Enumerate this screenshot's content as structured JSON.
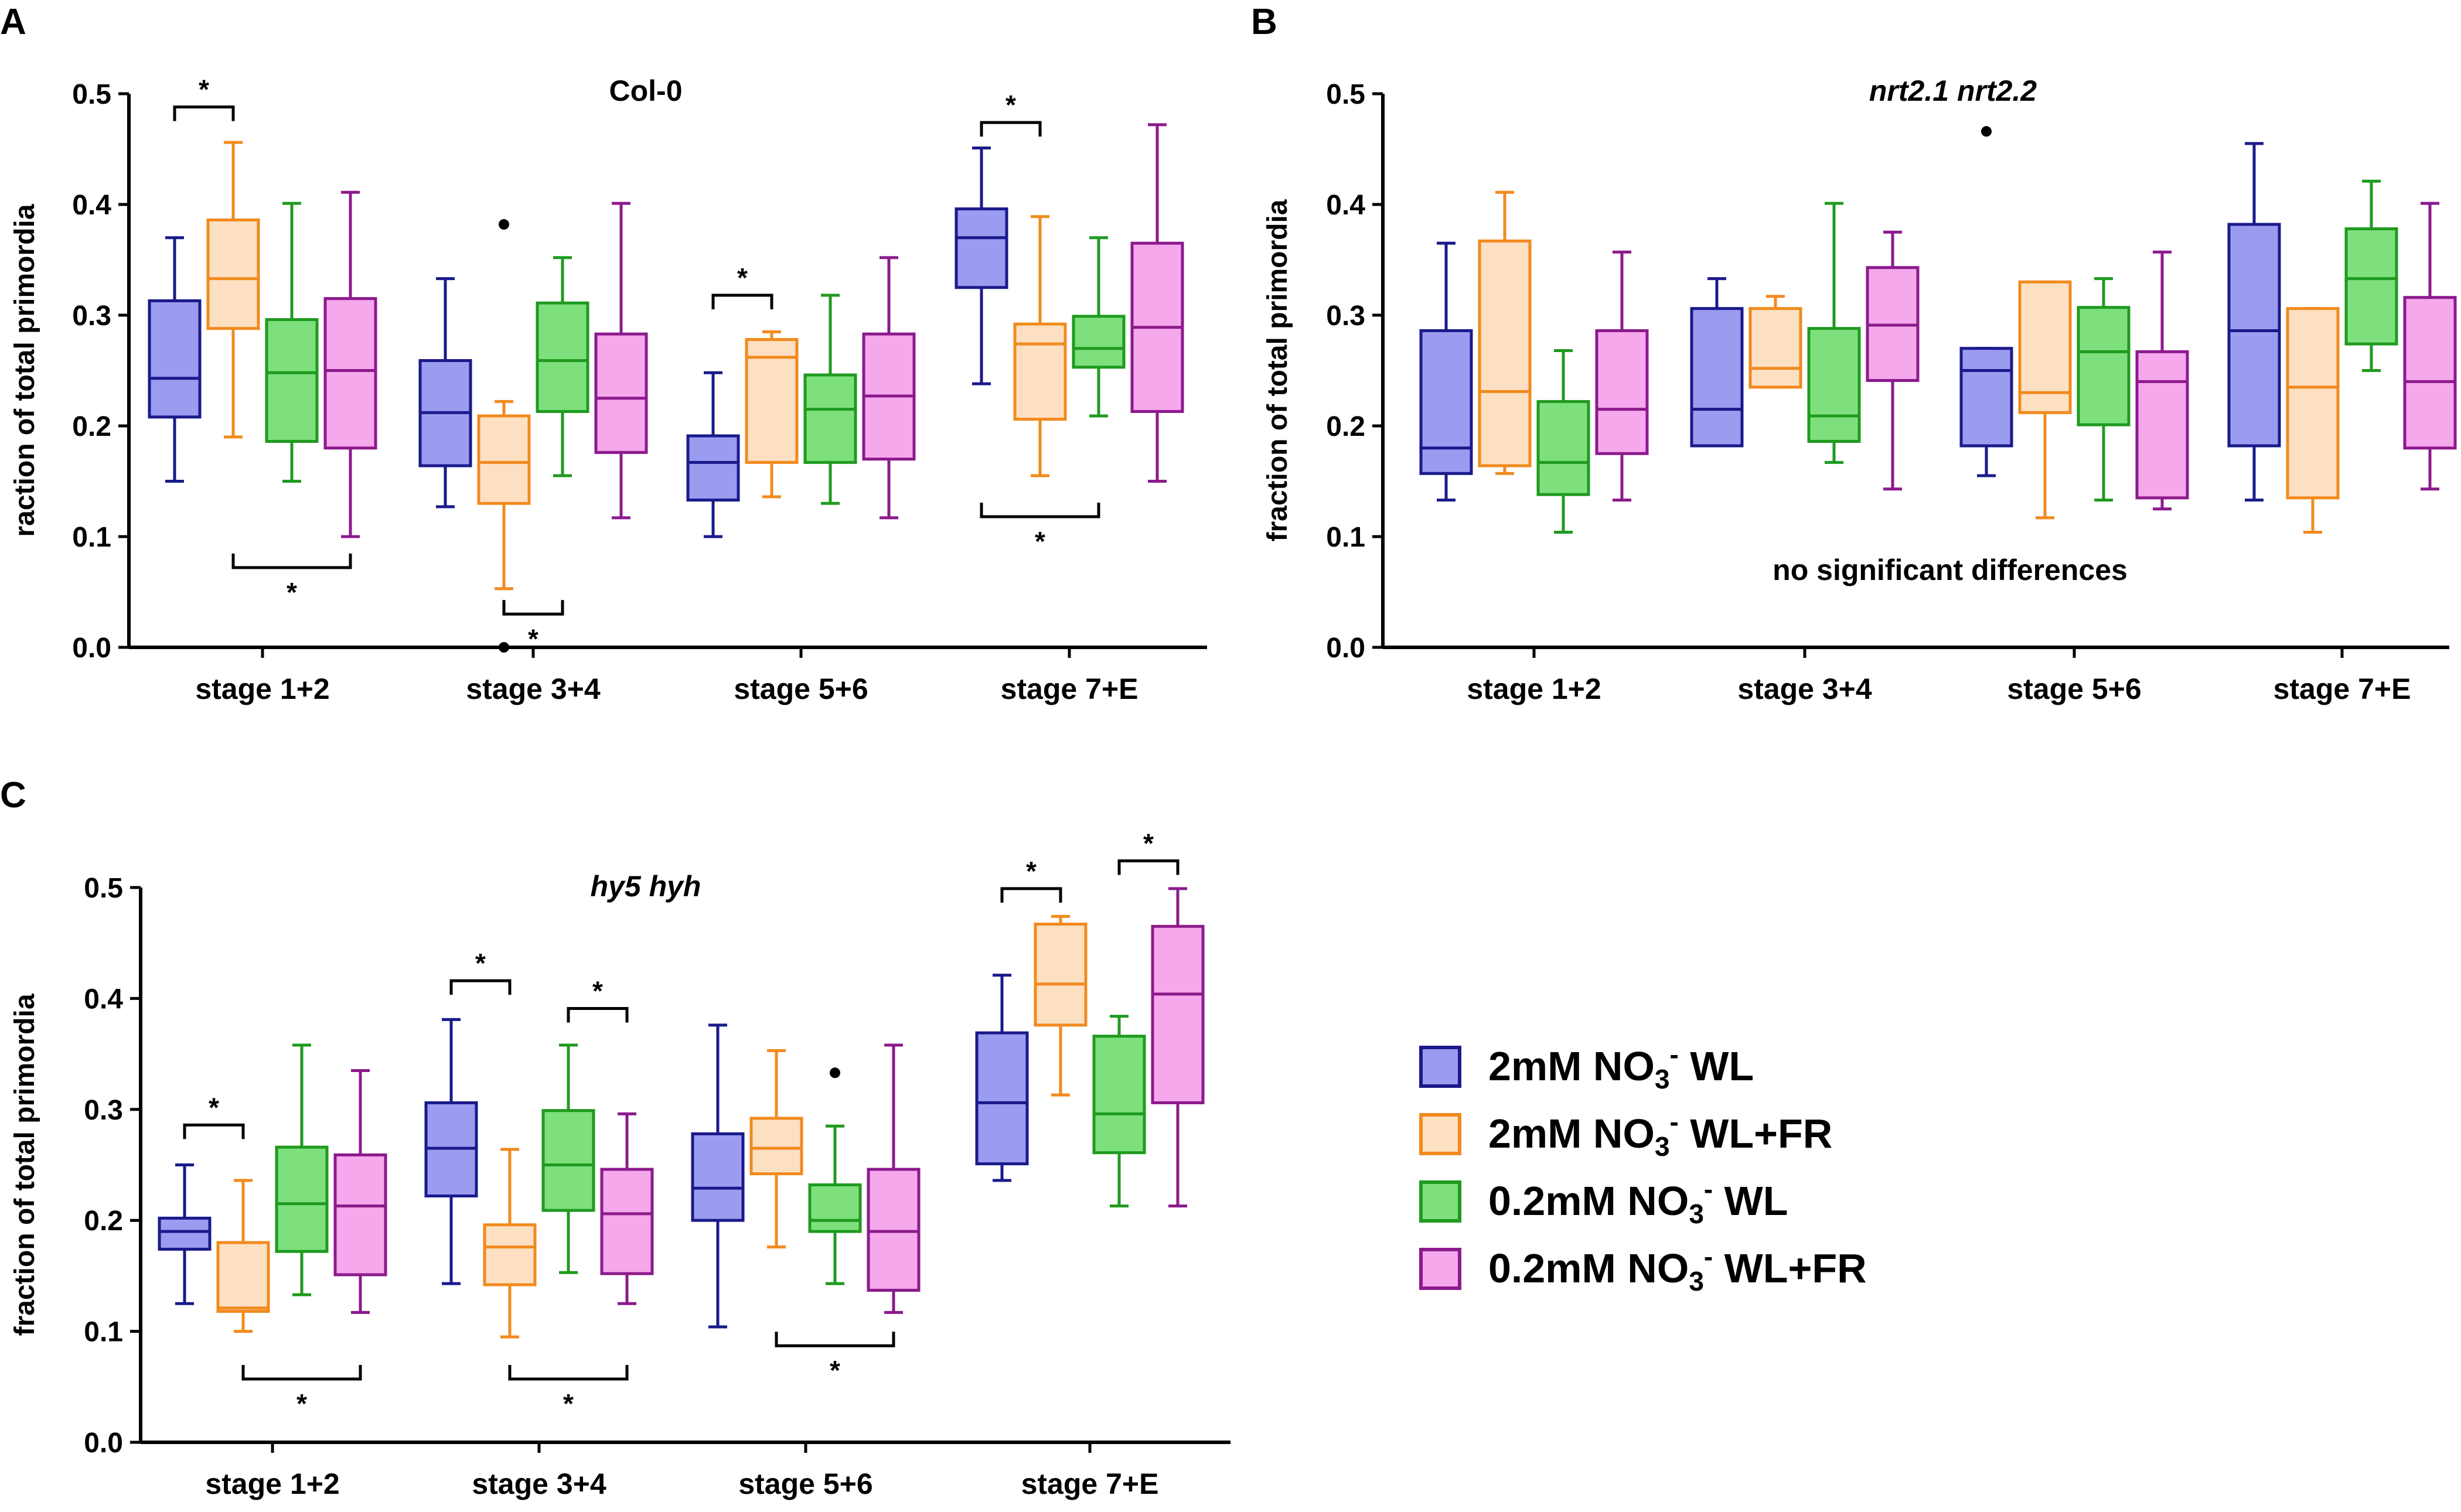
{
  "colors": {
    "2mM NO3 WL": {
      "stroke": "#1a1a8c",
      "fill": "#9b9bf0"
    },
    "2mM NO3 WL+FR": {
      "stroke": "#f28a1e",
      "fill": "#fde0c2"
    },
    "0.2mM NO3 WL": {
      "stroke": "#1f9a1f",
      "fill": "#7de07d"
    },
    "0.2mM NO3 WL+FR": {
      "stroke": "#8c1a8c",
      "fill": "#f5a8ec"
    }
  },
  "legend": {
    "items": [
      {
        "series": "2mM NO3 WL",
        "pre": "2mM NO",
        "sub": "3",
        "sup": "-",
        "post": " WL"
      },
      {
        "series": "2mM NO3 WL+FR",
        "pre": "2mM NO",
        "sub": "3",
        "sup": "-",
        "post": " WL+FR"
      },
      {
        "series": "0.2mM NO3 WL",
        "pre": "0.2mM NO",
        "sub": "3",
        "sup": "-",
        "post": " WL"
      },
      {
        "series": "0.2mM NO3 WL+FR",
        "pre": "0.2mM NO",
        "sub": "3",
        "sup": "-",
        "post": " WL+FR"
      }
    ]
  },
  "chart_data": [
    {
      "panel": "A",
      "type": "boxplot",
      "title": "Col-0",
      "title_italic": false,
      "ylabel": "raction of total primordia",
      "ylim": [
        0,
        0.5
      ],
      "yticks": [
        "0.0",
        "0.1",
        "0.2",
        "0.3",
        "0.4",
        "0.5"
      ],
      "categories": [
        "stage 1+2",
        "stage 3+4",
        "stage 5+6",
        "stage 7+E"
      ],
      "series_order": [
        "2mM NO3 WL",
        "2mM NO3 WL+FR",
        "0.2mM NO3 WL",
        "0.2mM NO3 WL+FR"
      ],
      "boxes": [
        [
          [
            0.15,
            0.208,
            0.243,
            0.313,
            0.37
          ],
          [
            0.19,
            0.288,
            0.333,
            0.386,
            0.456
          ],
          [
            0.15,
            0.186,
            0.248,
            0.296,
            0.401
          ],
          [
            0.1,
            0.18,
            0.25,
            0.315,
            0.411
          ]
        ],
        [
          [
            0.127,
            0.164,
            0.212,
            0.259,
            0.333
          ],
          [
            0.053,
            0.13,
            0.167,
            0.209,
            0.222
          ],
          [
            0.155,
            0.213,
            0.259,
            0.311,
            0.352
          ],
          [
            0.117,
            0.176,
            0.225,
            0.283,
            0.401
          ]
        ],
        [
          [
            0.1,
            0.133,
            0.167,
            0.191,
            0.248
          ],
          [
            0.136,
            0.167,
            0.262,
            0.278,
            0.285
          ],
          [
            0.13,
            0.167,
            0.215,
            0.246,
            0.318
          ],
          [
            0.117,
            0.17,
            0.227,
            0.283,
            0.352
          ]
        ],
        [
          [
            0.238,
            0.325,
            0.37,
            0.396,
            0.451
          ],
          [
            0.155,
            0.206,
            0.274,
            0.292,
            0.389
          ],
          [
            0.209,
            0.253,
            0.27,
            0.299,
            0.37
          ],
          [
            0.15,
            0.213,
            0.289,
            0.365,
            0.472
          ]
        ]
      ],
      "outliers": [
        {
          "cat": 1,
          "series": 1,
          "value": 0.382
        },
        {
          "cat": 1,
          "series": 1,
          "value": 0.0
        }
      ],
      "significance": [
        {
          "cat": 0,
          "from": 0,
          "to": 1,
          "type": "top",
          "level": 0.488,
          "label": "*"
        },
        {
          "cat": 0,
          "from": 1,
          "to": 3,
          "type": "bottom",
          "level": 0.072,
          "label": "*"
        },
        {
          "cat": 1,
          "from": 1,
          "to": 2,
          "type": "bottom",
          "level": 0.03,
          "label": "*"
        },
        {
          "cat": 2,
          "from": 0,
          "to": 1,
          "type": "top",
          "level": 0.318,
          "label": "*"
        },
        {
          "cat": 3,
          "from": 0,
          "to": 1,
          "type": "top",
          "level": 0.474,
          "label": "*"
        },
        {
          "cat": 3,
          "from": 0,
          "to": 2,
          "type": "bottom",
          "level": 0.118,
          "label": "*"
        }
      ],
      "note": ""
    },
    {
      "panel": "B",
      "type": "boxplot",
      "title": "nrt2.1 nrt2.2",
      "title_italic": true,
      "ylabel": "fraction of total primordia",
      "ylim": [
        0,
        0.5
      ],
      "yticks": [
        "0.0",
        "0.1",
        "0.2",
        "0.3",
        "0.4",
        "0.5"
      ],
      "categories": [
        "stage 1+2",
        "stage 3+4",
        "stage 5+6",
        "stage 7+E"
      ],
      "series_order": [
        "2mM NO3 WL",
        "2mM NO3 WL+FR",
        "0.2mM NO3 WL",
        "0.2mM NO3 WL+FR"
      ],
      "boxes": [
        [
          [
            0.133,
            0.157,
            0.18,
            0.286,
            0.365
          ],
          [
            0.157,
            0.164,
            0.231,
            0.367,
            0.411
          ],
          [
            0.104,
            0.138,
            0.167,
            0.222,
            0.268
          ],
          [
            0.133,
            0.175,
            0.215,
            0.286,
            0.357
          ]
        ],
        [
          [
            0.182,
            0.182,
            0.215,
            0.306,
            0.333
          ],
          [
            0.235,
            0.235,
            0.252,
            0.306,
            0.317
          ],
          [
            0.167,
            0.186,
            0.209,
            0.288,
            0.401
          ],
          [
            0.143,
            0.241,
            0.291,
            0.343,
            0.375
          ]
        ],
        [
          [
            0.155,
            0.182,
            0.25,
            0.27,
            0.27
          ],
          [
            0.117,
            0.212,
            0.23,
            0.33,
            0.33
          ],
          [
            0.133,
            0.201,
            0.267,
            0.307,
            0.333
          ],
          [
            0.125,
            0.135,
            0.24,
            0.267,
            0.357
          ]
        ],
        [
          [
            0.133,
            0.182,
            0.286,
            0.382,
            0.455
          ],
          [
            0.104,
            0.135,
            0.235,
            0.306,
            0.306
          ],
          [
            0.25,
            0.274,
            0.333,
            0.378,
            0.421
          ],
          [
            0.143,
            0.18,
            0.24,
            0.316,
            0.401
          ]
        ]
      ],
      "outliers": [
        {
          "cat": 2,
          "series": 0,
          "value": 0.466
        }
      ],
      "significance": [],
      "note": "no significant differences"
    },
    {
      "panel": "C",
      "type": "boxplot",
      "title": "hy5 hyh",
      "title_italic": true,
      "ylabel": "fraction of total primordia",
      "ylim": [
        0,
        0.5
      ],
      "yticks": [
        "0.0",
        "0.1",
        "0.2",
        "0.3",
        "0.4",
        "0.5"
      ],
      "categories": [
        "stage 1+2",
        "stage 3+4",
        "stage 5+6",
        "stage 7+E"
      ],
      "series_order": [
        "2mM NO3 WL",
        "2mM NO3 WL+FR",
        "0.2mM NO3 WL",
        "0.2mM NO3 WL+FR"
      ],
      "boxes": [
        [
          [
            0.125,
            0.174,
            0.19,
            0.202,
            0.25
          ],
          [
            0.1,
            0.118,
            0.121,
            0.18,
            0.236
          ],
          [
            0.133,
            0.172,
            0.215,
            0.266,
            0.358
          ],
          [
            0.117,
            0.151,
            0.213,
            0.259,
            0.335
          ]
        ],
        [
          [
            0.143,
            0.222,
            0.265,
            0.306,
            0.381
          ],
          [
            0.095,
            0.142,
            0.176,
            0.196,
            0.264
          ],
          [
            0.153,
            0.209,
            0.25,
            0.299,
            0.358
          ],
          [
            0.125,
            0.152,
            0.206,
            0.246,
            0.296
          ]
        ],
        [
          [
            0.104,
            0.2,
            0.229,
            0.278,
            0.376
          ],
          [
            0.176,
            0.242,
            0.265,
            0.292,
            0.353
          ],
          [
            0.143,
            0.19,
            0.2,
            0.232,
            0.285
          ],
          [
            0.117,
            0.137,
            0.19,
            0.246,
            0.358
          ]
        ],
        [
          [
            0.236,
            0.251,
            0.306,
            0.369,
            0.421
          ],
          [
            0.313,
            0.376,
            0.413,
            0.467,
            0.474
          ],
          [
            0.213,
            0.261,
            0.296,
            0.366,
            0.384
          ],
          [
            0.213,
            0.306,
            0.404,
            0.465,
            0.499
          ]
        ]
      ],
      "outliers": [
        {
          "cat": 2,
          "series": 2,
          "value": 0.333
        }
      ],
      "significance": [
        {
          "cat": 0,
          "from": 0,
          "to": 1,
          "type": "top",
          "level": 0.286,
          "label": "*"
        },
        {
          "cat": 0,
          "from": 1,
          "to": 3,
          "type": "bottom",
          "level": 0.057,
          "label": "*"
        },
        {
          "cat": 1,
          "from": 0,
          "to": 1,
          "type": "top",
          "level": 0.416,
          "label": "*"
        },
        {
          "cat": 1,
          "from": 2,
          "to": 3,
          "type": "top",
          "level": 0.391,
          "label": "*"
        },
        {
          "cat": 1,
          "from": 1,
          "to": 3,
          "type": "bottom",
          "level": 0.057,
          "label": "*"
        },
        {
          "cat": 2,
          "from": 1,
          "to": 3,
          "type": "bottom",
          "level": 0.087,
          "label": "*"
        },
        {
          "cat": 3,
          "from": 0,
          "to": 1,
          "type": "top",
          "level": 0.499,
          "label": "*"
        },
        {
          "cat": 3,
          "from": 2,
          "to": 3,
          "type": "top",
          "level": 0.524,
          "label": "*"
        }
      ],
      "note": ""
    }
  ]
}
